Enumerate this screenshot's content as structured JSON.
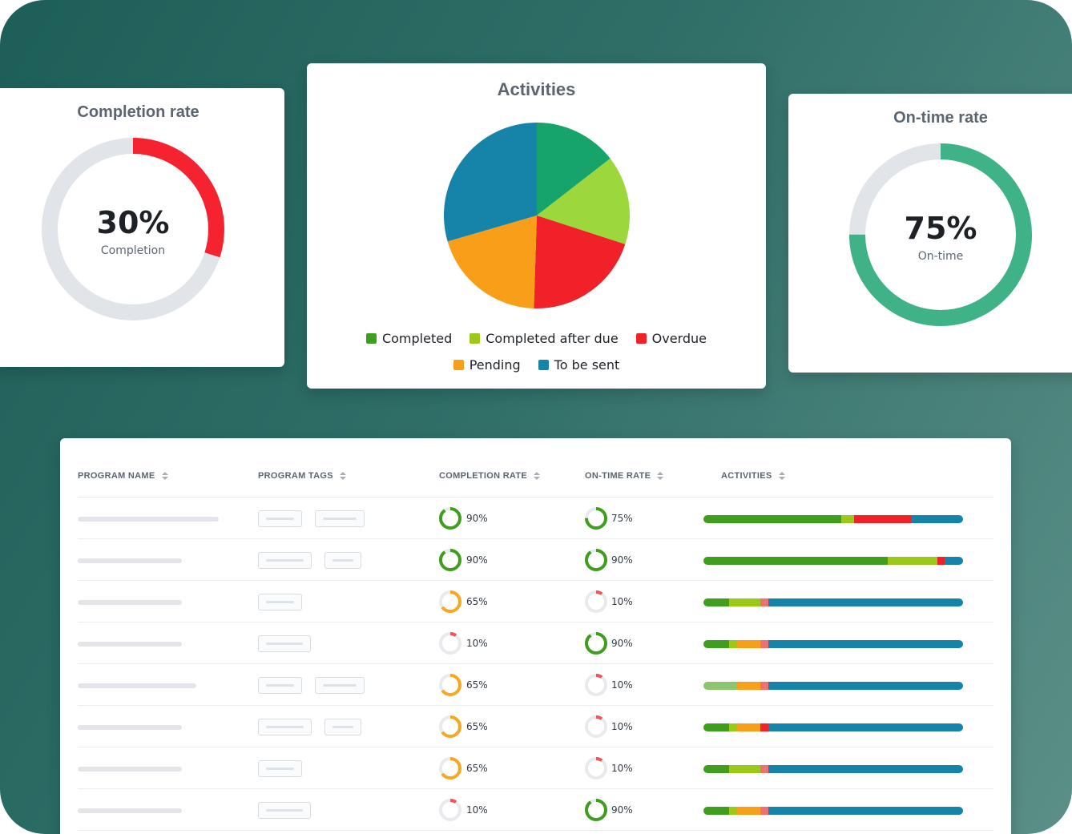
{
  "completion_card": {
    "title": "Completion rate",
    "value": "30%",
    "label": "Completion",
    "fraction": 0.3,
    "color": "#f52230"
  },
  "activities_card": {
    "title": "Activities",
    "legend": [
      {
        "label": "Completed",
        "color": "#3f9e1d"
      },
      {
        "label": "Completed after due",
        "color": "#9ac91a"
      },
      {
        "label": "Overdue",
        "color": "#f02128"
      },
      {
        "label": "Pending",
        "color": "#f79e1b"
      },
      {
        "label": "To be sent",
        "color": "#1683a8"
      }
    ]
  },
  "chart_data": {
    "type": "pie",
    "title": "Activities",
    "slices": [
      {
        "label": "Completed",
        "value": 14.5,
        "color": "#17a46a"
      },
      {
        "label": "Completed after due",
        "value": 15.5,
        "color": "#9cd83b"
      },
      {
        "label": "Overdue",
        "value": 20.5,
        "color": "#f02128"
      },
      {
        "label": "Pending",
        "value": 20.0,
        "color": "#f89e19"
      },
      {
        "label": "To be sent",
        "value": 29.5,
        "color": "#1683a8"
      }
    ],
    "legend_position": "bottom"
  },
  "ontime_card": {
    "title": "On-time rate",
    "value": "75%",
    "label": "On-time",
    "fraction": 0.75,
    "color": "#3fb287"
  },
  "table": {
    "headers": {
      "program_name": "PROGRAM NAME",
      "program_tags": "PROGRAM TAGS",
      "completion_rate": "COMPLETION RATE",
      "ontime_rate": "ON-TIME RATE",
      "activities": "ACTIVITIES"
    },
    "rows": [
      {
        "completion": "90%",
        "completion_frac": 0.9,
        "ontime": "75%",
        "ontime_frac": 0.75,
        "activities": [
          {
            "c": "#3f9e1d",
            "v": 53
          },
          {
            "c": "#9ac91a",
            "v": 5
          },
          {
            "c": "#f02128",
            "v": 22
          },
          {
            "c": "#1683a8",
            "v": 20
          }
        ]
      },
      {
        "completion": "90%",
        "completion_frac": 0.9,
        "ontime": "90%",
        "ontime_frac": 0.9,
        "activities": [
          {
            "c": "#3f9e1d",
            "v": 71
          },
          {
            "c": "#9ac91a",
            "v": 19
          },
          {
            "c": "#f02128",
            "v": 3
          },
          {
            "c": "#1683a8",
            "v": 7
          }
        ]
      },
      {
        "completion": "65%",
        "completion_frac": 0.65,
        "ontime": "10%",
        "ontime_frac": 0.1,
        "activities": [
          {
            "c": "#3f9e1d",
            "v": 10
          },
          {
            "c": "#9ac91a",
            "v": 12
          },
          {
            "c": "#f07070",
            "v": 3
          },
          {
            "c": "#1683a8",
            "v": 75
          }
        ]
      },
      {
        "completion": "10%",
        "completion_frac": 0.1,
        "ontime": "90%",
        "ontime_frac": 0.9,
        "activities": [
          {
            "c": "#3f9e1d",
            "v": 10
          },
          {
            "c": "#9ac91a",
            "v": 3
          },
          {
            "c": "#f79e1b",
            "v": 9
          },
          {
            "c": "#f07070",
            "v": 3
          },
          {
            "c": "#1683a8",
            "v": 75
          }
        ]
      },
      {
        "completion": "65%",
        "completion_frac": 0.65,
        "ontime": "10%",
        "ontime_frac": 0.1,
        "activities": [
          {
            "c": "#8cc470",
            "v": 13
          },
          {
            "c": "#f79e1b",
            "v": 9
          },
          {
            "c": "#f07070",
            "v": 3
          },
          {
            "c": "#1683a8",
            "v": 75
          }
        ]
      },
      {
        "completion": "65%",
        "completion_frac": 0.65,
        "ontime": "10%",
        "ontime_frac": 0.1,
        "activities": [
          {
            "c": "#3f9e1d",
            "v": 10
          },
          {
            "c": "#9ac91a",
            "v": 3
          },
          {
            "c": "#f79e1b",
            "v": 9
          },
          {
            "c": "#f02128",
            "v": 3
          },
          {
            "c": "#1683a8",
            "v": 75
          }
        ]
      },
      {
        "completion": "65%",
        "completion_frac": 0.65,
        "ontime": "10%",
        "ontime_frac": 0.1,
        "activities": [
          {
            "c": "#3f9e1d",
            "v": 10
          },
          {
            "c": "#9ac91a",
            "v": 12
          },
          {
            "c": "#f07070",
            "v": 3
          },
          {
            "c": "#1683a8",
            "v": 75
          }
        ]
      },
      {
        "completion": "10%",
        "completion_frac": 0.1,
        "ontime": "90%",
        "ontime_frac": 0.9,
        "activities": [
          {
            "c": "#3f9e1d",
            "v": 10
          },
          {
            "c": "#9ac91a",
            "v": 3
          },
          {
            "c": "#f79e1b",
            "v": 9
          },
          {
            "c": "#f07070",
            "v": 3
          },
          {
            "c": "#1683a8",
            "v": 75
          }
        ]
      }
    ]
  }
}
